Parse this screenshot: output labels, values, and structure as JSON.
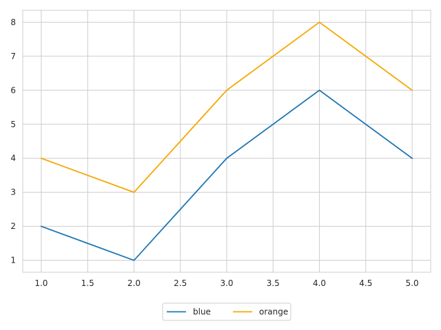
{
  "chart_data": {
    "type": "line",
    "title": "",
    "xlabel": "",
    "ylabel": "",
    "x": [
      1.0,
      2.0,
      3.0,
      4.0,
      5.0
    ],
    "series": [
      {
        "name": "blue",
        "color": "#1f77b4",
        "values": [
          2,
          1,
          4,
          6,
          4
        ]
      },
      {
        "name": "orange",
        "color": "#f5a700",
        "values": [
          4,
          3,
          6,
          8,
          6
        ]
      }
    ],
    "xlim": [
      0.8,
      5.2
    ],
    "ylim": [
      0.65,
      8.35
    ],
    "x_ticks": [
      1.0,
      1.5,
      2.0,
      2.5,
      3.0,
      3.5,
      4.0,
      4.5,
      5.0
    ],
    "x_tick_labels": [
      "1.0",
      "1.5",
      "2.0",
      "2.5",
      "3.0",
      "3.5",
      "4.0",
      "4.5",
      "5.0"
    ],
    "y_ticks": [
      1,
      2,
      3,
      4,
      5,
      6,
      7,
      8
    ],
    "y_tick_labels": [
      "1",
      "2",
      "3",
      "4",
      "5",
      "6",
      "7",
      "8"
    ],
    "grid": true,
    "legend_position": "bottom-center"
  }
}
